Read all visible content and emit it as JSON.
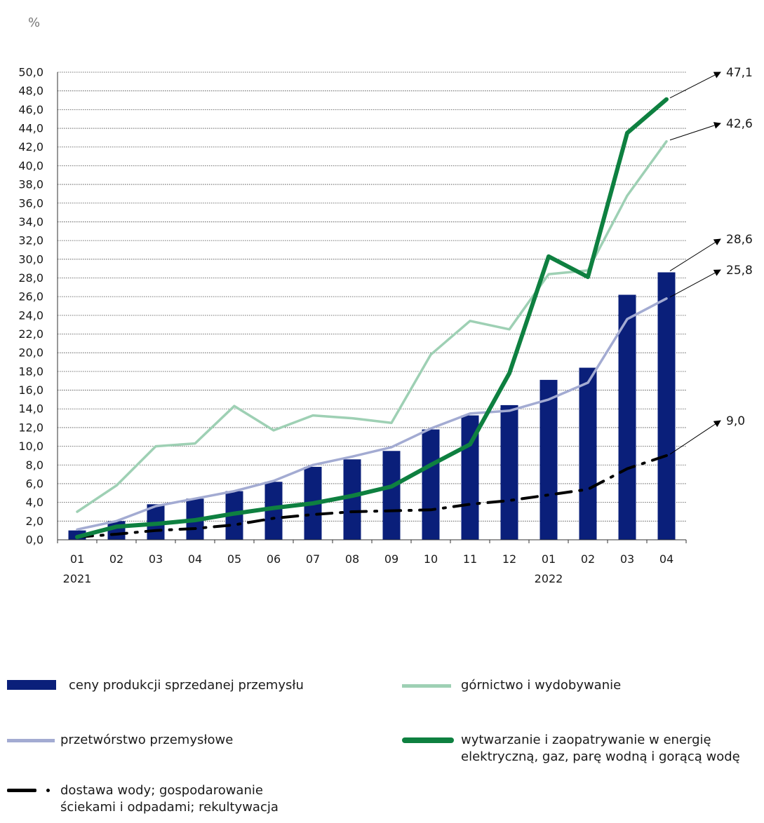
{
  "chart_data": {
    "type": "bar",
    "unit_label": "%",
    "categories": [
      "01",
      "02",
      "03",
      "04",
      "05",
      "06",
      "07",
      "08",
      "09",
      "10",
      "11",
      "12",
      "01",
      "02",
      "03",
      "04"
    ],
    "year_labels": [
      {
        "category_index": 0,
        "label": "2021"
      },
      {
        "category_index": 12,
        "label": "2022"
      }
    ],
    "ylim": [
      0,
      50
    ],
    "ytick_step": 2,
    "grid": true,
    "series": [
      {
        "name": "ceny produkcji sprzedanej przemysłu",
        "type": "bar",
        "color": "#0a1f7a",
        "values": [
          1.0,
          2.0,
          3.8,
          4.4,
          5.2,
          6.2,
          7.8,
          8.6,
          9.5,
          11.8,
          13.3,
          14.4,
          17.1,
          18.4,
          26.2,
          28.6
        ]
      },
      {
        "name": "górnictwo i wydobywanie",
        "type": "line",
        "color": "#9ed0b4",
        "values": [
          3.0,
          5.8,
          10.0,
          10.3,
          14.3,
          11.7,
          13.3,
          13.0,
          12.5,
          19.8,
          23.4,
          22.5,
          28.4,
          28.8,
          36.8,
          42.6
        ]
      },
      {
        "name": "przetwórstwo przemysłowe",
        "type": "line",
        "color": "#a3abd2",
        "values": [
          1.1,
          2.0,
          3.6,
          4.4,
          5.2,
          6.3,
          8.0,
          8.9,
          9.9,
          11.9,
          13.5,
          13.8,
          15.0,
          16.8,
          23.6,
          25.8
        ]
      },
      {
        "name": "wytwarzanie i zaopatrywanie w energię elektryczną, gaz, parę wodną i gorącą wodę",
        "type": "line",
        "color": "#0e8040",
        "values": [
          0.3,
          1.4,
          1.7,
          2.1,
          2.8,
          3.4,
          3.9,
          4.7,
          5.7,
          8.0,
          10.2,
          17.8,
          30.3,
          28.1,
          43.5,
          47.1
        ]
      },
      {
        "name": "dostawa wody; gospodarowanie ściekami i odpadami; rekultywacja",
        "type": "line",
        "color": "#000000",
        "values": [
          0.3,
          0.6,
          1.0,
          1.2,
          1.6,
          2.3,
          2.7,
          3.0,
          3.1,
          3.2,
          3.8,
          4.2,
          4.8,
          5.4,
          7.6,
          9.0
        ]
      }
    ],
    "callouts": [
      "47,1",
      "42,6",
      "28,6",
      "25,8",
      "9,0"
    ]
  },
  "legend": [
    {
      "label": "ceny produkcji sprzedanej przemysłu"
    },
    {
      "label": "górnictwo i wydobywanie"
    },
    {
      "label": "przetwórstwo przemysłowe"
    },
    {
      "label": "wytwarzanie i zaopatrywanie w energię elektryczną, gaz, parę wodną i gorącą wodę"
    },
    {
      "label": "dostawa wody; gospodarowanie ściekami i odpadami; rekultywacja"
    }
  ]
}
